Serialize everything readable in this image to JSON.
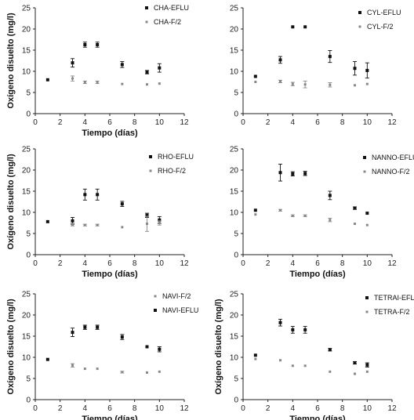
{
  "chart_data": [
    {
      "type": "scatter",
      "xlabel": "Tiempo (días)",
      "ylabel": "Oxígeno disuelto (mg/l)",
      "xlim": [
        0,
        12
      ],
      "ylim": [
        0,
        25
      ],
      "xticks": [
        0,
        2,
        4,
        6,
        8,
        10,
        12
      ],
      "yticks": [
        0,
        5,
        10,
        15,
        20,
        25
      ],
      "legend_position": "top-right",
      "series": [
        {
          "name": "CHA-EFLU",
          "marker": "square",
          "color": "#111111",
          "points": [
            {
              "x": 1,
              "y": 8.0,
              "err": 0
            },
            {
              "x": 3,
              "y": 12.0,
              "err": 1.0
            },
            {
              "x": 4,
              "y": 16.3,
              "err": 0.6
            },
            {
              "x": 5,
              "y": 16.3,
              "err": 0.6
            },
            {
              "x": 7,
              "y": 11.6,
              "err": 0.7
            },
            {
              "x": 9,
              "y": 9.8,
              "err": 0.4
            },
            {
              "x": 10,
              "y": 10.8,
              "err": 1.0
            }
          ]
        },
        {
          "name": "CHA-F/2",
          "marker": "square",
          "color": "#888888",
          "points": [
            {
              "x": 3,
              "y": 8.3,
              "err": 0.6
            },
            {
              "x": 4,
              "y": 7.4,
              "err": 0.3
            },
            {
              "x": 5,
              "y": 7.4,
              "err": 0.3
            },
            {
              "x": 7,
              "y": 7.0,
              "err": 0
            },
            {
              "x": 9,
              "y": 6.9,
              "err": 0
            },
            {
              "x": 10,
              "y": 7.1,
              "err": 0
            }
          ]
        }
      ]
    },
    {
      "type": "scatter",
      "xlabel": "",
      "ylabel": "",
      "xlim": [
        0,
        12
      ],
      "ylim": [
        0,
        25
      ],
      "xticks": [
        0,
        2,
        4,
        6,
        8,
        10,
        12
      ],
      "yticks": [
        0,
        5,
        10,
        15,
        20,
        25
      ],
      "legend_position": "top-right",
      "series": [
        {
          "name": "CYL-EFLU",
          "marker": "square",
          "color": "#111111",
          "points": [
            {
              "x": 1,
              "y": 8.8,
              "err": 0
            },
            {
              "x": 3,
              "y": 12.7,
              "err": 0.8
            },
            {
              "x": 4,
              "y": 20.5,
              "err": 0
            },
            {
              "x": 5,
              "y": 20.5,
              "err": 0
            },
            {
              "x": 7,
              "y": 13.5,
              "err": 1.4
            },
            {
              "x": 9,
              "y": 10.7,
              "err": 1.6
            },
            {
              "x": 10,
              "y": 10.2,
              "err": 1.8
            }
          ]
        },
        {
          "name": "CYL-F/2",
          "marker": "square",
          "color": "#888888",
          "points": [
            {
              "x": 1,
              "y": 7.5,
              "err": 0
            },
            {
              "x": 3,
              "y": 7.6,
              "err": 0.3
            },
            {
              "x": 4,
              "y": 7.0,
              "err": 0.4
            },
            {
              "x": 5,
              "y": 6.9,
              "err": 0.8
            },
            {
              "x": 7,
              "y": 6.8,
              "err": 0.5
            },
            {
              "x": 9,
              "y": 6.7,
              "err": 0
            },
            {
              "x": 10,
              "y": 7.0,
              "err": 0
            }
          ]
        }
      ]
    },
    {
      "type": "scatter",
      "xlabel": "Tiempo (días)",
      "ylabel": "Oxígeno disuelto (mg/l)",
      "xlim": [
        0,
        12
      ],
      "ylim": [
        0,
        25
      ],
      "xticks": [
        0,
        2,
        4,
        6,
        8,
        10,
        12
      ],
      "yticks": [
        0,
        5,
        10,
        15,
        20,
        25
      ],
      "legend_position": "top-right",
      "series": [
        {
          "name": "RHO-EFLU",
          "marker": "square",
          "color": "#111111",
          "points": [
            {
              "x": 1,
              "y": 7.8,
              "err": 0
            },
            {
              "x": 3,
              "y": 8.0,
              "err": 0.8
            },
            {
              "x": 4,
              "y": 14.2,
              "err": 1.3
            },
            {
              "x": 5,
              "y": 14.2,
              "err": 1.3
            },
            {
              "x": 7,
              "y": 12.0,
              "err": 0.6
            },
            {
              "x": 9,
              "y": 9.3,
              "err": 0.5
            },
            {
              "x": 10,
              "y": 8.2,
              "err": 0.8
            }
          ]
        },
        {
          "name": "RHO-F/2",
          "marker": "square",
          "color": "#888888",
          "points": [
            {
              "x": 3,
              "y": 7.1,
              "err": 0.3
            },
            {
              "x": 4,
              "y": 7.0,
              "err": 0.2
            },
            {
              "x": 5,
              "y": 7.0,
              "err": 0.2
            },
            {
              "x": 7,
              "y": 6.5,
              "err": 0
            },
            {
              "x": 9,
              "y": 7.3,
              "err": 1.8
            },
            {
              "x": 10,
              "y": 7.5,
              "err": 0.5
            }
          ]
        }
      ]
    },
    {
      "type": "scatter",
      "xlabel": "Tiempo (días)",
      "ylabel": "",
      "xlim": [
        0,
        12
      ],
      "ylim": [
        0,
        25
      ],
      "xticks": [
        0,
        2,
        4,
        6,
        8,
        10,
        12
      ],
      "yticks": [
        0,
        5,
        10,
        15,
        20,
        25
      ],
      "legend_position": "top-right",
      "series": [
        {
          "name": "NANNO-EFLU",
          "marker": "square",
          "color": "#111111",
          "points": [
            {
              "x": 1,
              "y": 10.5,
              "err": 0
            },
            {
              "x": 3,
              "y": 19.4,
              "err": 2.0
            },
            {
              "x": 4,
              "y": 19.1,
              "err": 0.5
            },
            {
              "x": 5,
              "y": 19.2,
              "err": 0.5
            },
            {
              "x": 7,
              "y": 14.0,
              "err": 1.0
            },
            {
              "x": 9,
              "y": 11.0,
              "err": 0.3
            },
            {
              "x": 10,
              "y": 9.8,
              "err": 0
            }
          ]
        },
        {
          "name": "NANNO-F/2",
          "marker": "square",
          "color": "#888888",
          "points": [
            {
              "x": 1,
              "y": 9.5,
              "err": 0
            },
            {
              "x": 3,
              "y": 10.5,
              "err": 0.2
            },
            {
              "x": 4,
              "y": 9.2,
              "err": 0.2
            },
            {
              "x": 5,
              "y": 9.2,
              "err": 0.2
            },
            {
              "x": 7,
              "y": 8.2,
              "err": 0.4
            },
            {
              "x": 9,
              "y": 7.3,
              "err": 0
            },
            {
              "x": 10,
              "y": 7.0,
              "err": 0
            }
          ]
        }
      ]
    },
    {
      "type": "scatter",
      "xlabel": "Tiempo (días)",
      "ylabel": "Oxígeno disuelto (mg/l)",
      "xlim": [
        0,
        12
      ],
      "ylim": [
        0,
        25
      ],
      "xticks": [
        0,
        2,
        4,
        6,
        8,
        10,
        12
      ],
      "yticks": [
        0,
        5,
        10,
        15,
        20,
        25
      ],
      "legend_position": "top-right",
      "series": [
        {
          "name": "NAVI-F/2",
          "marker": "square",
          "color": "#888888",
          "points": [
            {
              "x": 3,
              "y": 8.1,
              "err": 0.4
            },
            {
              "x": 4,
              "y": 7.3,
              "err": 0
            },
            {
              "x": 5,
              "y": 7.3,
              "err": 0
            },
            {
              "x": 7,
              "y": 6.5,
              "err": 0.2
            },
            {
              "x": 9,
              "y": 6.4,
              "err": 0
            },
            {
              "x": 10,
              "y": 6.6,
              "err": 0
            }
          ]
        },
        {
          "name": "NAVI-EFLU",
          "marker": "square",
          "color": "#111111",
          "points": [
            {
              "x": 1,
              "y": 9.5,
              "err": 0
            },
            {
              "x": 3,
              "y": 15.9,
              "err": 1.0
            },
            {
              "x": 4,
              "y": 17.1,
              "err": 0.5
            },
            {
              "x": 5,
              "y": 17.1,
              "err": 0.5
            },
            {
              "x": 7,
              "y": 14.8,
              "err": 0.6
            },
            {
              "x": 9,
              "y": 12.5,
              "err": 0
            },
            {
              "x": 10,
              "y": 11.9,
              "err": 0.6
            }
          ]
        }
      ]
    },
    {
      "type": "scatter",
      "xlabel": "Tiempo (días)",
      "ylabel": "Oxígeno disuelto (mg/l)",
      "xlim": [
        0,
        12
      ],
      "ylim": [
        0,
        25
      ],
      "xticks": [
        0,
        2,
        4,
        6,
        8,
        10,
        12
      ],
      "yticks": [
        0,
        5,
        10,
        15,
        20,
        25
      ],
      "legend_position": "top-right",
      "series": [
        {
          "name": "TETRAI-EFLU",
          "marker": "square",
          "color": "#111111",
          "points": [
            {
              "x": 1,
              "y": 10.5,
              "err": 0
            },
            {
              "x": 3,
              "y": 18.2,
              "err": 0.8
            },
            {
              "x": 4,
              "y": 16.5,
              "err": 0.8
            },
            {
              "x": 5,
              "y": 16.5,
              "err": 0.8
            },
            {
              "x": 7,
              "y": 11.8,
              "err": 0.3
            },
            {
              "x": 9,
              "y": 8.7,
              "err": 0.3
            },
            {
              "x": 10,
              "y": 8.2,
              "err": 0.5
            }
          ]
        },
        {
          "name": "TETRA-F/2",
          "marker": "square",
          "color": "#888888",
          "points": [
            {
              "x": 1,
              "y": 9.6,
              "err": 0
            },
            {
              "x": 3,
              "y": 9.3,
              "err": 0
            },
            {
              "x": 4,
              "y": 8.0,
              "err": 0
            },
            {
              "x": 5,
              "y": 8.0,
              "err": 0
            },
            {
              "x": 7,
              "y": 6.6,
              "err": 0
            },
            {
              "x": 9,
              "y": 6.1,
              "err": 0
            },
            {
              "x": 10,
              "y": 6.6,
              "err": 0
            }
          ]
        }
      ]
    }
  ]
}
